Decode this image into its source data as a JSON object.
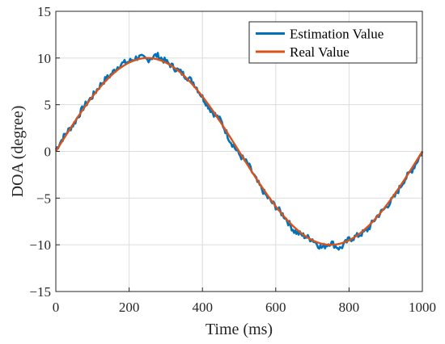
{
  "chart_data": {
    "type": "line",
    "xlabel": "Time (ms)",
    "ylabel": "DOA (degree)",
    "xlim": [
      0,
      1000
    ],
    "ylim": [
      -15,
      15
    ],
    "xticks": [
      0,
      200,
      400,
      600,
      800,
      1000
    ],
    "yticks": [
      -15,
      -10,
      -5,
      0,
      5,
      10,
      15
    ],
    "grid": true,
    "legend_position": "top-right",
    "series": [
      {
        "name": "Estimation Value",
        "color": "#0072BD",
        "x": [
          0,
          25,
          50,
          75,
          100,
          125,
          150,
          175,
          200,
          225,
          250,
          275,
          300,
          325,
          350,
          375,
          400,
          425,
          450,
          475,
          500,
          525,
          550,
          575,
          600,
          625,
          650,
          675,
          700,
          725,
          750,
          775,
          800,
          825,
          850,
          875,
          900,
          925,
          950,
          975,
          1000
        ],
        "values": [
          0.2,
          1.8,
          3.0,
          4.7,
          5.9,
          7.3,
          8.2,
          9.3,
          9.6,
          10.1,
          9.8,
          10.3,
          9.6,
          8.9,
          8.2,
          7.4,
          5.8,
          4.3,
          3.3,
          1.2,
          -0.3,
          -1.4,
          -3.3,
          -4.8,
          -5.9,
          -7.0,
          -8.5,
          -9.0,
          -9.4,
          -10.3,
          -9.7,
          -10.4,
          -9.4,
          -9.0,
          -8.4,
          -7.0,
          -6.0,
          -4.8,
          -3.1,
          -1.8,
          0.0
        ]
      },
      {
        "name": "Real Value",
        "color": "#D95319",
        "function": "10*sin(2*pi*t/1000)"
      }
    ]
  },
  "legend": {
    "items": [
      "Estimation Value",
      "Real Value"
    ]
  }
}
